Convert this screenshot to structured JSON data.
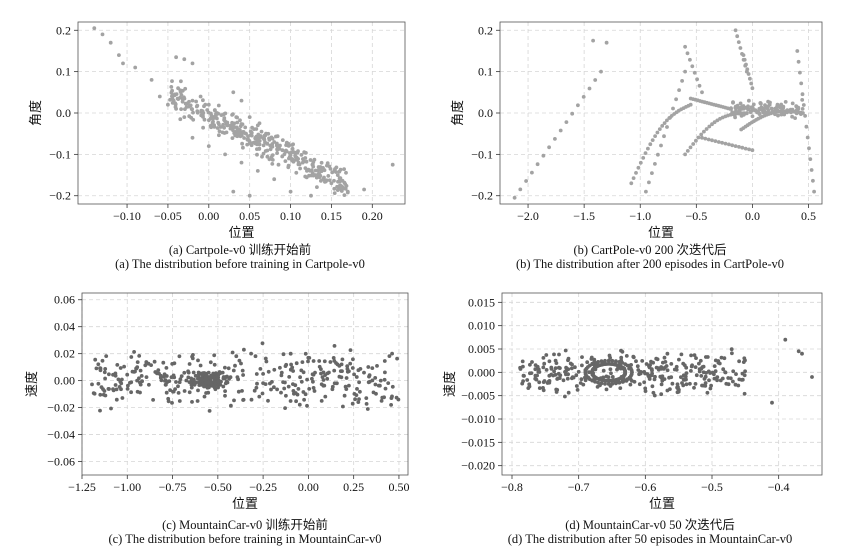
{
  "chart_data": [
    {
      "type": "scatter",
      "xlabel": "位置",
      "ylabel": "角度",
      "xlim": [
        -0.16,
        0.24
      ],
      "ylim": [
        -0.22,
        0.22
      ],
      "xticks": [
        -0.1,
        -0.05,
        0.0,
        0.05,
        0.1,
        0.15,
        0.2
      ],
      "xtick_labels": [
        "−0.10",
        "−0.05",
        "0.00",
        "0.05",
        "0.10",
        "0.15",
        "0.20"
      ],
      "yticks": [
        -0.2,
        -0.1,
        0.0,
        0.1,
        0.2
      ],
      "ytick_labels": [
        "−0.2",
        "−0.1",
        "0.0",
        "0.1",
        "0.2"
      ],
      "grid": true,
      "marker_color": "#a3a3a3",
      "caption_cn": "(a) Cartpole-v0 训练开始前",
      "caption_en": "(a) The distribution before training in Cartpole-v0",
      "points": [
        [
          -0.14,
          0.205
        ],
        [
          -0.13,
          0.19
        ],
        [
          -0.12,
          0.17
        ],
        [
          -0.11,
          0.14
        ],
        [
          -0.105,
          0.12
        ],
        [
          -0.09,
          0.11
        ],
        [
          -0.07,
          0.08
        ],
        [
          -0.06,
          0.04
        ],
        [
          -0.04,
          0.135
        ],
        [
          -0.03,
          0.13
        ],
        [
          -0.02,
          0.12
        ],
        [
          -0.05,
          0.02
        ],
        [
          -0.04,
          0.01
        ],
        [
          -0.03,
          -0.01
        ],
        [
          -0.02,
          0.03
        ],
        [
          -0.01,
          0.04
        ],
        [
          0.0,
          0.02
        ],
        [
          0.01,
          0.0
        ],
        [
          0.02,
          -0.02
        ],
        [
          0.03,
          0.05
        ],
        [
          0.04,
          0.03
        ],
        [
          0.05,
          -0.01
        ],
        [
          0.06,
          -0.03
        ],
        [
          0.07,
          -0.05
        ],
        [
          0.08,
          -0.07
        ],
        [
          0.09,
          -0.09
        ],
        [
          0.1,
          -0.11
        ],
        [
          0.11,
          -0.12
        ],
        [
          0.12,
          -0.14
        ],
        [
          0.13,
          -0.15
        ],
        [
          0.14,
          -0.16
        ],
        [
          0.15,
          -0.17
        ],
        [
          0.16,
          -0.18
        ],
        [
          0.17,
          -0.19
        ],
        [
          0.19,
          -0.185
        ],
        [
          0.225,
          -0.125
        ],
        [
          0.05,
          -0.2
        ],
        [
          0.03,
          -0.19
        ],
        [
          0.1,
          -0.19
        ],
        [
          0.125,
          -0.2
        ],
        [
          -0.02,
          -0.06
        ],
        [
          0.0,
          -0.08
        ],
        [
          0.02,
          -0.1
        ],
        [
          0.04,
          -0.12
        ],
        [
          0.06,
          -0.14
        ],
        [
          0.08,
          -0.16
        ]
      ],
      "random_cloud": {
        "count": 360,
        "seed": 11,
        "x_range": [
          -0.05,
          0.17
        ],
        "trend": [
          -0.005,
          -1.0
        ],
        "spread": 0.05
      }
    },
    {
      "type": "scatter",
      "xlabel": "位置",
      "ylabel": "角度",
      "xlim": [
        -2.25,
        0.62
      ],
      "ylim": [
        -0.22,
        0.22
      ],
      "xticks": [
        -2.0,
        -1.5,
        -1.0,
        -0.5,
        0.0,
        0.5
      ],
      "xtick_labels": [
        "−2.0",
        "−1.5",
        "−1.0",
        "−0.5",
        "0.0",
        "0.5"
      ],
      "yticks": [
        -0.2,
        -0.1,
        0.0,
        0.1,
        0.2
      ],
      "ytick_labels": [
        "−0.2",
        "−0.1",
        "0.0",
        "0.1",
        "0.2"
      ],
      "grid": true,
      "marker_color": "#a3a3a3",
      "caption_cn": "(b) CartPole-v0 200 次迭代后",
      "caption_en": "(b) The distribution after 200 episodes in CartPole-v0",
      "curves": [
        {
          "from": [
            -2.12,
            -0.205
          ],
          "to": [
            -1.35,
            0.1
          ],
          "n": 16
        },
        {
          "from": [
            -1.42,
            0.175
          ],
          "to": [
            -1.3,
            0.17
          ],
          "n": 2
        },
        {
          "from": [
            -1.08,
            -0.17
          ],
          "to": [
            -0.55,
            0.02
          ],
          "n": 26,
          "bend": 0.04
        },
        {
          "from": [
            -0.95,
            -0.19
          ],
          "to": [
            -0.6,
            0.1
          ],
          "n": 14
        },
        {
          "from": [
            -0.55,
            0.035
          ],
          "to": [
            -0.2,
            0.01
          ],
          "n": 18
        },
        {
          "from": [
            -0.6,
            -0.1
          ],
          "to": [
            -0.05,
            0.0
          ],
          "n": 24,
          "bend": 0.03
        },
        {
          "from": [
            -0.45,
            -0.06
          ],
          "to": [
            0.0,
            -0.09
          ],
          "n": 16
        },
        {
          "from": [
            -0.1,
            -0.04
          ],
          "to": [
            0.45,
            0.0
          ],
          "n": 30,
          "bend": 0.02
        },
        {
          "from": [
            -0.15,
            0.2
          ],
          "to": [
            -0.05,
            0.1
          ],
          "n": 8
        },
        {
          "from": [
            -0.08,
            0.14
          ],
          "to": [
            0.0,
            0.06
          ],
          "n": 8
        },
        {
          "from": [
            0.4,
            0.15
          ],
          "to": [
            0.55,
            -0.19
          ],
          "n": 14
        },
        {
          "from": [
            -0.6,
            0.16
          ],
          "to": [
            -0.45,
            0.05
          ],
          "n": 8
        }
      ],
      "random_cloud": {
        "count": 110,
        "seed": 23,
        "x_range": [
          -0.2,
          0.45
        ],
        "trend": [
          0.01,
          0.0
        ],
        "spread": 0.03
      }
    },
    {
      "type": "scatter",
      "xlabel": "位置",
      "ylabel": "速度",
      "xlim": [
        -1.25,
        0.55
      ],
      "ylim": [
        -0.07,
        0.065
      ],
      "xticks": [
        -1.25,
        -1.0,
        -0.75,
        -0.5,
        -0.25,
        0.0,
        0.25,
        0.5
      ],
      "xtick_labels": [
        "−1.25",
        "−1.00",
        "−0.75",
        "−0.50",
        "−0.25",
        "0.00",
        "0.25",
        "0.50"
      ],
      "yticks": [
        -0.06,
        -0.04,
        -0.02,
        0.0,
        0.02,
        0.04,
        0.06
      ],
      "ytick_labels": [
        "−0.06",
        "−0.04",
        "−0.02",
        "0.00",
        "0.02",
        "0.04",
        "0.06"
      ],
      "grid": true,
      "marker_color": "#666666",
      "caption_cn": "(c) MountainCar-v0 训练开始前",
      "caption_en": "(c) The distribution before training in MountainCar-v0",
      "curves": [
        {
          "from": [
            -0.25,
            0.005
          ],
          "to": [
            0.4,
            0.0
          ],
          "n": 22,
          "bend": 0.012
        }
      ],
      "random_cloud": {
        "count": 330,
        "seed": 37,
        "x_range": [
          -1.2,
          0.5
        ],
        "trend": [
          0.0,
          0.0
        ],
        "spread": 0.03,
        "dense_center": [
          -0.55,
          0.0
        ],
        "dense_count": 140,
        "dense_spread": [
          0.15,
          0.008
        ]
      }
    },
    {
      "type": "scatter",
      "xlabel": "位置",
      "ylabel": "速度",
      "xlim": [
        -0.815,
        -0.335
      ],
      "ylim": [
        -0.022,
        0.017
      ],
      "xticks": [
        -0.8,
        -0.7,
        -0.6,
        -0.5,
        -0.4
      ],
      "xtick_labels": [
        "−0.8",
        "−0.7",
        "−0.6",
        "−0.5",
        "−0.4"
      ],
      "yticks": [
        -0.02,
        -0.015,
        -0.01,
        -0.005,
        0.0,
        0.005,
        0.01,
        0.015
      ],
      "ytick_labels": [
        "−0.020",
        "−0.015",
        "−0.010",
        "−0.005",
        "0.000",
        "0.005",
        "0.010",
        "0.015"
      ],
      "grid": true,
      "marker_color": "#666666",
      "caption_cn": "(d) MountainCar-v0 50 次迭代后",
      "caption_en": "(d) The distribution after 50 episodes in MountainCar-v0",
      "ellipses": [
        {
          "center": [
            -0.655,
            0.0
          ],
          "rx": 0.025,
          "ry": 0.0018,
          "n": 60
        },
        {
          "center": [
            -0.655,
            0.0
          ],
          "rx": 0.035,
          "ry": 0.0025,
          "n": 40
        }
      ],
      "points": [
        [
          -0.39,
          0.007
        ],
        [
          -0.37,
          0.0045
        ],
        [
          -0.365,
          0.004
        ],
        [
          -0.35,
          -0.001
        ],
        [
          -0.41,
          -0.0065
        ]
      ],
      "random_cloud": {
        "count": 330,
        "seed": 53,
        "x_range": [
          -0.79,
          -0.45
        ],
        "trend": [
          0.0,
          0.0
        ],
        "spread": 0.0065
      }
    }
  ]
}
